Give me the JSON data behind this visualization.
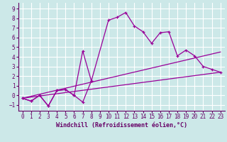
{
  "background_color": "#cce8e8",
  "grid_color": "#ffffff",
  "line_color": "#990099",
  "xlabel": "Windchill (Refroidissement éolien,°C)",
  "xlabel_fontsize": 6.0,
  "tick_fontsize": 5.5,
  "xlim": [
    -0.5,
    23.5
  ],
  "ylim": [
    -1.6,
    9.6
  ],
  "yticks": [
    -1,
    0,
    1,
    2,
    3,
    4,
    5,
    6,
    7,
    8,
    9
  ],
  "xticks": [
    0,
    1,
    2,
    3,
    4,
    5,
    6,
    7,
    8,
    9,
    10,
    11,
    12,
    13,
    14,
    15,
    16,
    17,
    18,
    19,
    20,
    21,
    22,
    23
  ],
  "series": [
    {
      "x": [
        0,
        1,
        2,
        3,
        4,
        5,
        6,
        7,
        8
      ],
      "y": [
        -0.3,
        -0.6,
        0.0,
        -1.1,
        0.5,
        0.6,
        0.0,
        4.6,
        1.5
      ]
    },
    {
      "x": [
        0,
        1,
        2,
        3,
        4,
        5,
        6,
        7,
        8,
        10,
        11,
        12,
        13,
        14,
        15,
        16,
        17,
        18,
        19,
        20,
        21,
        22,
        23
      ],
      "y": [
        -0.3,
        -0.6,
        0.0,
        -1.1,
        0.5,
        0.6,
        0.0,
        -0.7,
        1.5,
        7.8,
        8.1,
        8.6,
        7.2,
        6.6,
        5.4,
        6.5,
        6.6,
        4.1,
        4.7,
        4.1,
        3.0,
        2.7,
        2.4
      ]
    },
    {
      "x": [
        0,
        23
      ],
      "y": [
        -0.3,
        4.5
      ]
    },
    {
      "x": [
        0,
        23
      ],
      "y": [
        -0.3,
        2.4
      ]
    }
  ]
}
